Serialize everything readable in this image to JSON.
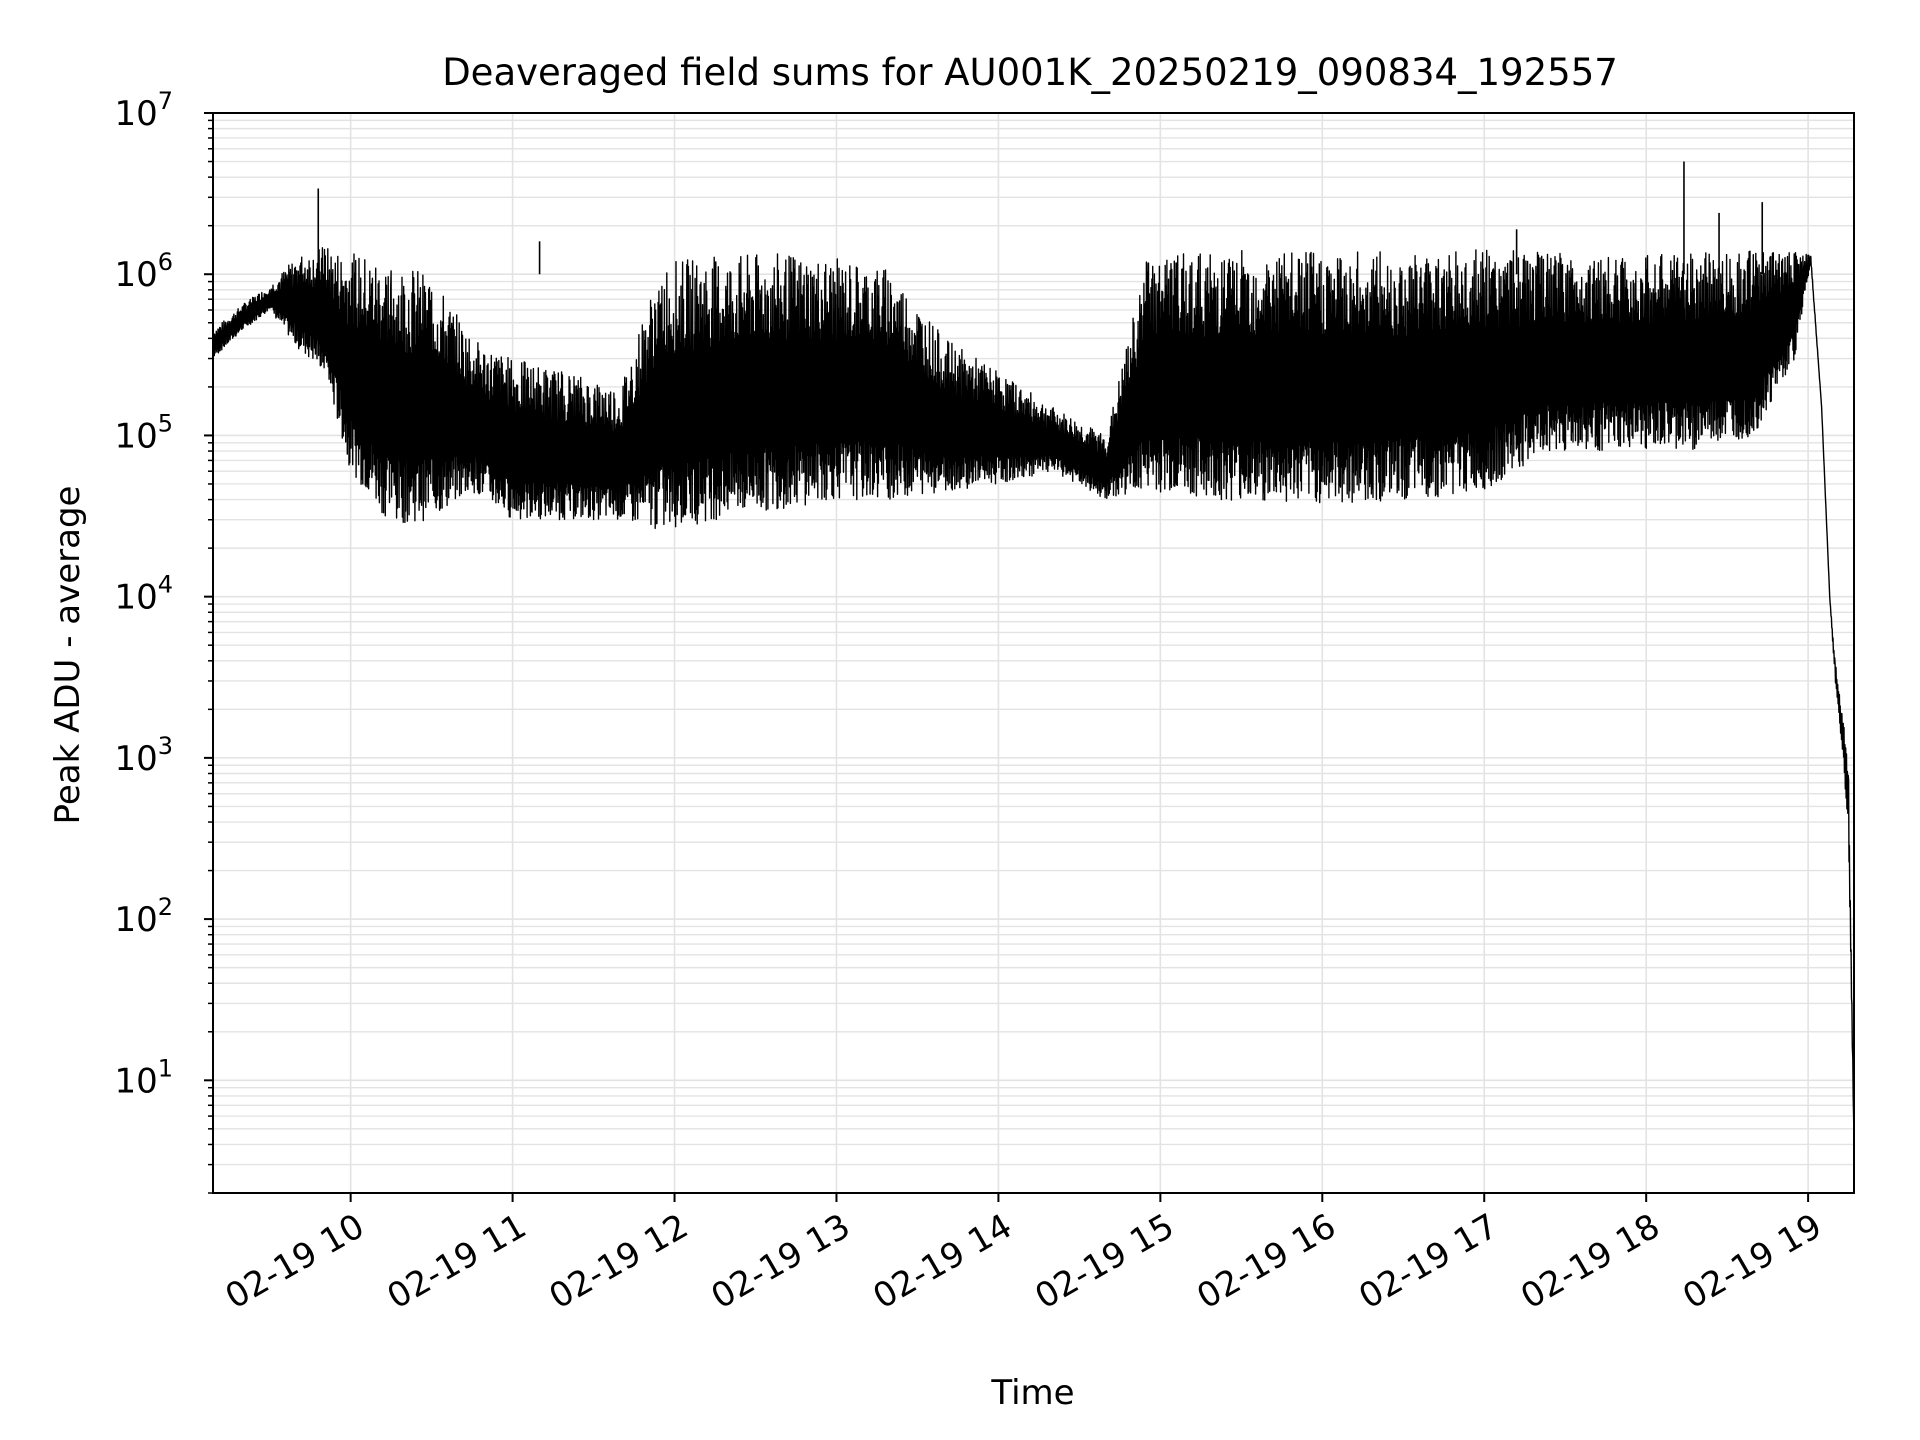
{
  "chart_data": {
    "type": "line",
    "title": "Deaveraged field sums for AU001K_20250219_090834_192557",
    "xlabel": "Time",
    "ylabel": "Peak ADU - average",
    "yscale": "log",
    "ylim": [
      2,
      10000000
    ],
    "xlim": [
      "2025-02-19 09:09",
      "2025-02-19 19:17"
    ],
    "grid": true,
    "legend": "none",
    "line_color": "#000000",
    "grid_color": "#e3e3e3",
    "x_ticks": [
      {
        "label": "02-19 10",
        "time": "2025-02-19 10:00"
      },
      {
        "label": "02-19 11",
        "time": "2025-02-19 11:00"
      },
      {
        "label": "02-19 12",
        "time": "2025-02-19 12:00"
      },
      {
        "label": "02-19 13",
        "time": "2025-02-19 13:00"
      },
      {
        "label": "02-19 14",
        "time": "2025-02-19 14:00"
      },
      {
        "label": "02-19 15",
        "time": "2025-02-19 15:00"
      },
      {
        "label": "02-19 16",
        "time": "2025-02-19 16:00"
      },
      {
        "label": "02-19 17",
        "time": "2025-02-19 17:00"
      },
      {
        "label": "02-19 18",
        "time": "2025-02-19 18:00"
      },
      {
        "label": "02-19 19",
        "time": "2025-02-19 19:00"
      }
    ],
    "y_ticks": [
      {
        "base": "10",
        "exp": "1",
        "value": 10
      },
      {
        "base": "10",
        "exp": "2",
        "value": 100
      },
      {
        "base": "10",
        "exp": "3",
        "value": 1000
      },
      {
        "base": "10",
        "exp": "4",
        "value": 10000
      },
      {
        "base": "10",
        "exp": "5",
        "value": 100000
      },
      {
        "base": "10",
        "exp": "6",
        "value": 1000000
      },
      {
        "base": "10",
        "exp": "7",
        "value": 10000000
      }
    ],
    "series": [
      {
        "note": "approximate envelope of the densely sampled trace",
        "points": [
          {
            "t": "2025-02-19 09:09",
            "lower": 300000,
            "upper": 450000
          },
          {
            "t": "2025-02-19 09:20",
            "lower": 450000,
            "upper": 650000
          },
          {
            "t": "2025-02-19 09:30",
            "lower": 600000,
            "upper": 850000
          },
          {
            "t": "2025-02-19 09:40",
            "lower": 350000,
            "upper": 1300000
          },
          {
            "t": "2025-02-19 09:50",
            "lower": 250000,
            "upper": 1500000
          },
          {
            "t": "2025-02-19 10:00",
            "lower": 60000,
            "upper": 1350000
          },
          {
            "t": "2025-02-19 10:15",
            "lower": 28000,
            "upper": 1250000
          },
          {
            "t": "2025-02-19 10:30",
            "lower": 30000,
            "upper": 1000000
          },
          {
            "t": "2025-02-19 10:45",
            "lower": 45000,
            "upper": 400000
          },
          {
            "t": "2025-02-19 11:00",
            "lower": 30000,
            "upper": 300000
          },
          {
            "t": "2025-02-19 11:20",
            "lower": 30000,
            "upper": 250000
          },
          {
            "t": "2025-02-19 11:40",
            "lower": 30000,
            "upper": 200000
          },
          {
            "t": "2025-02-19 11:55",
            "lower": 25000,
            "upper": 1200000
          },
          {
            "t": "2025-02-19 12:15",
            "lower": 30000,
            "upper": 1300000
          },
          {
            "t": "2025-02-19 12:40",
            "lower": 35000,
            "upper": 1350000
          },
          {
            "t": "2025-02-19 13:00",
            "lower": 40000,
            "upper": 1250000
          },
          {
            "t": "2025-02-19 13:20",
            "lower": 40000,
            "upper": 1100000
          },
          {
            "t": "2025-02-19 13:40",
            "lower": 45000,
            "upper": 400000
          },
          {
            "t": "2025-02-19 14:00",
            "lower": 50000,
            "upper": 250000
          },
          {
            "t": "2025-02-19 14:20",
            "lower": 60000,
            "upper": 150000
          },
          {
            "t": "2025-02-19 14:40",
            "lower": 40000,
            "upper": 100000
          },
          {
            "t": "2025-02-19 14:55",
            "lower": 45000,
            "upper": 1300000
          },
          {
            "t": "2025-02-19 15:20",
            "lower": 40000,
            "upper": 1400000
          },
          {
            "t": "2025-02-19 15:45",
            "lower": 38000,
            "upper": 1400000
          },
          {
            "t": "2025-02-19 16:10",
            "lower": 38000,
            "upper": 1400000
          },
          {
            "t": "2025-02-19 16:35",
            "lower": 40000,
            "upper": 1400000
          },
          {
            "t": "2025-02-19 17:00",
            "lower": 45000,
            "upper": 1450000
          },
          {
            "t": "2025-02-19 17:25",
            "lower": 80000,
            "upper": 1350000
          },
          {
            "t": "2025-02-19 17:50",
            "lower": 80000,
            "upper": 1300000
          },
          {
            "t": "2025-02-19 18:15",
            "lower": 80000,
            "upper": 1350000
          },
          {
            "t": "2025-02-19 18:40",
            "lower": 100000,
            "upper": 1400000
          },
          {
            "t": "2025-02-19 18:55",
            "lower": 300000,
            "upper": 1500000
          },
          {
            "t": "2025-02-19 19:01",
            "lower": 1200000,
            "upper": 1300000
          },
          {
            "t": "2025-02-19 19:05",
            "lower": 150000,
            "upper": 150000
          },
          {
            "t": "2025-02-19 19:08",
            "lower": 10000,
            "upper": 10000
          },
          {
            "t": "2025-02-19 19:10",
            "lower": 3000,
            "upper": 4000
          },
          {
            "t": "2025-02-19 19:13",
            "lower": 1000,
            "upper": 1800
          },
          {
            "t": "2025-02-19 19:15",
            "lower": 300,
            "upper": 900
          },
          {
            "t": "2025-02-19 19:17",
            "lower": 4,
            "upper": 4
          }
        ]
      }
    ],
    "spikes": [
      {
        "t": "2025-02-19 09:48",
        "value": 3400000
      },
      {
        "t": "2025-02-19 18:14",
        "value": 5000000
      },
      {
        "t": "2025-02-19 18:27",
        "value": 2400000
      },
      {
        "t": "2025-02-19 18:43",
        "value": 2800000
      },
      {
        "t": "2025-02-19 17:12",
        "value": 1900000
      },
      {
        "t": "2025-02-19 11:10",
        "value": 1600000
      }
    ]
  }
}
